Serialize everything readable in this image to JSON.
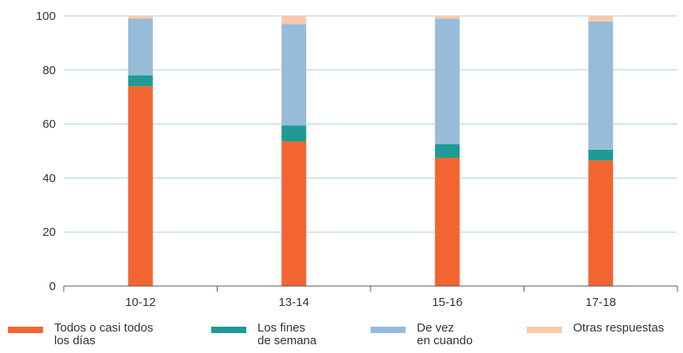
{
  "chart_data": {
    "type": "bar",
    "stacked": true,
    "categories": [
      "10-12",
      "13-14",
      "15-16",
      "17-18"
    ],
    "series": [
      {
        "name": "Todos o casi todos\nlos días",
        "color": "#f26532",
        "values": [
          74,
          53.5,
          47.5,
          46.5
        ]
      },
      {
        "name": "Los fines\nde semana",
        "color": "#1f9a95",
        "values": [
          4,
          6,
          5,
          4
        ]
      },
      {
        "name": "De vez\nen cuando",
        "color": "#98bbd9",
        "values": [
          21,
          37.5,
          46.5,
          47.5
        ]
      },
      {
        "name": "Otras respuestas",
        "color": "#f9c9ab",
        "values": [
          1,
          3,
          1,
          2
        ]
      }
    ],
    "title": "",
    "xlabel": "",
    "ylabel": "",
    "ylim": [
      0,
      100
    ],
    "yticks": [
      0,
      20,
      40,
      60,
      80,
      100
    ],
    "ytick_labels": [
      "0",
      "20",
      "40",
      "60",
      "80",
      "100"
    ],
    "grid": true,
    "legend_position": "bottom"
  }
}
